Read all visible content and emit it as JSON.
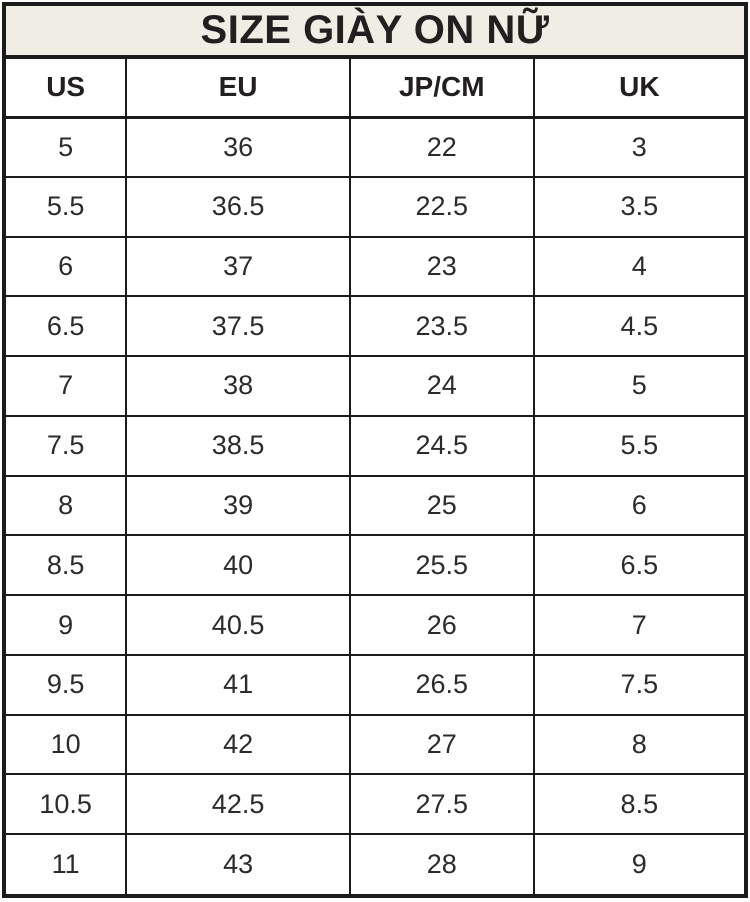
{
  "title": "SIZE GIÀY ON NỮ",
  "colors": {
    "title_bg": "#f0ede5",
    "border": "#1b1b1b",
    "heading_text": "#231f20",
    "body_text": "#2b2b2b",
    "background": "#ffffff"
  },
  "chart_data": {
    "type": "table",
    "title": "SIZE GIÀY ON NỮ",
    "columns": [
      "US",
      "EU",
      "JP/CM",
      "UK"
    ],
    "rows": [
      [
        "5",
        "36",
        "22",
        "3"
      ],
      [
        "5.5",
        "36.5",
        "22.5",
        "3.5"
      ],
      [
        "6",
        "37",
        "23",
        "4"
      ],
      [
        "6.5",
        "37.5",
        "23.5",
        "4.5"
      ],
      [
        "7",
        "38",
        "24",
        "5"
      ],
      [
        "7.5",
        "38.5",
        "24.5",
        "5.5"
      ],
      [
        "8",
        "39",
        "25",
        "6"
      ],
      [
        "8.5",
        "40",
        "25.5",
        "6.5"
      ],
      [
        "9",
        "40.5",
        "26",
        "7"
      ],
      [
        "9.5",
        "41",
        "26.5",
        "7.5"
      ],
      [
        "10",
        "42",
        "27",
        "8"
      ],
      [
        "10.5",
        "42.5",
        "27.5",
        "8.5"
      ],
      [
        "11",
        "43",
        "28",
        "9"
      ]
    ]
  }
}
